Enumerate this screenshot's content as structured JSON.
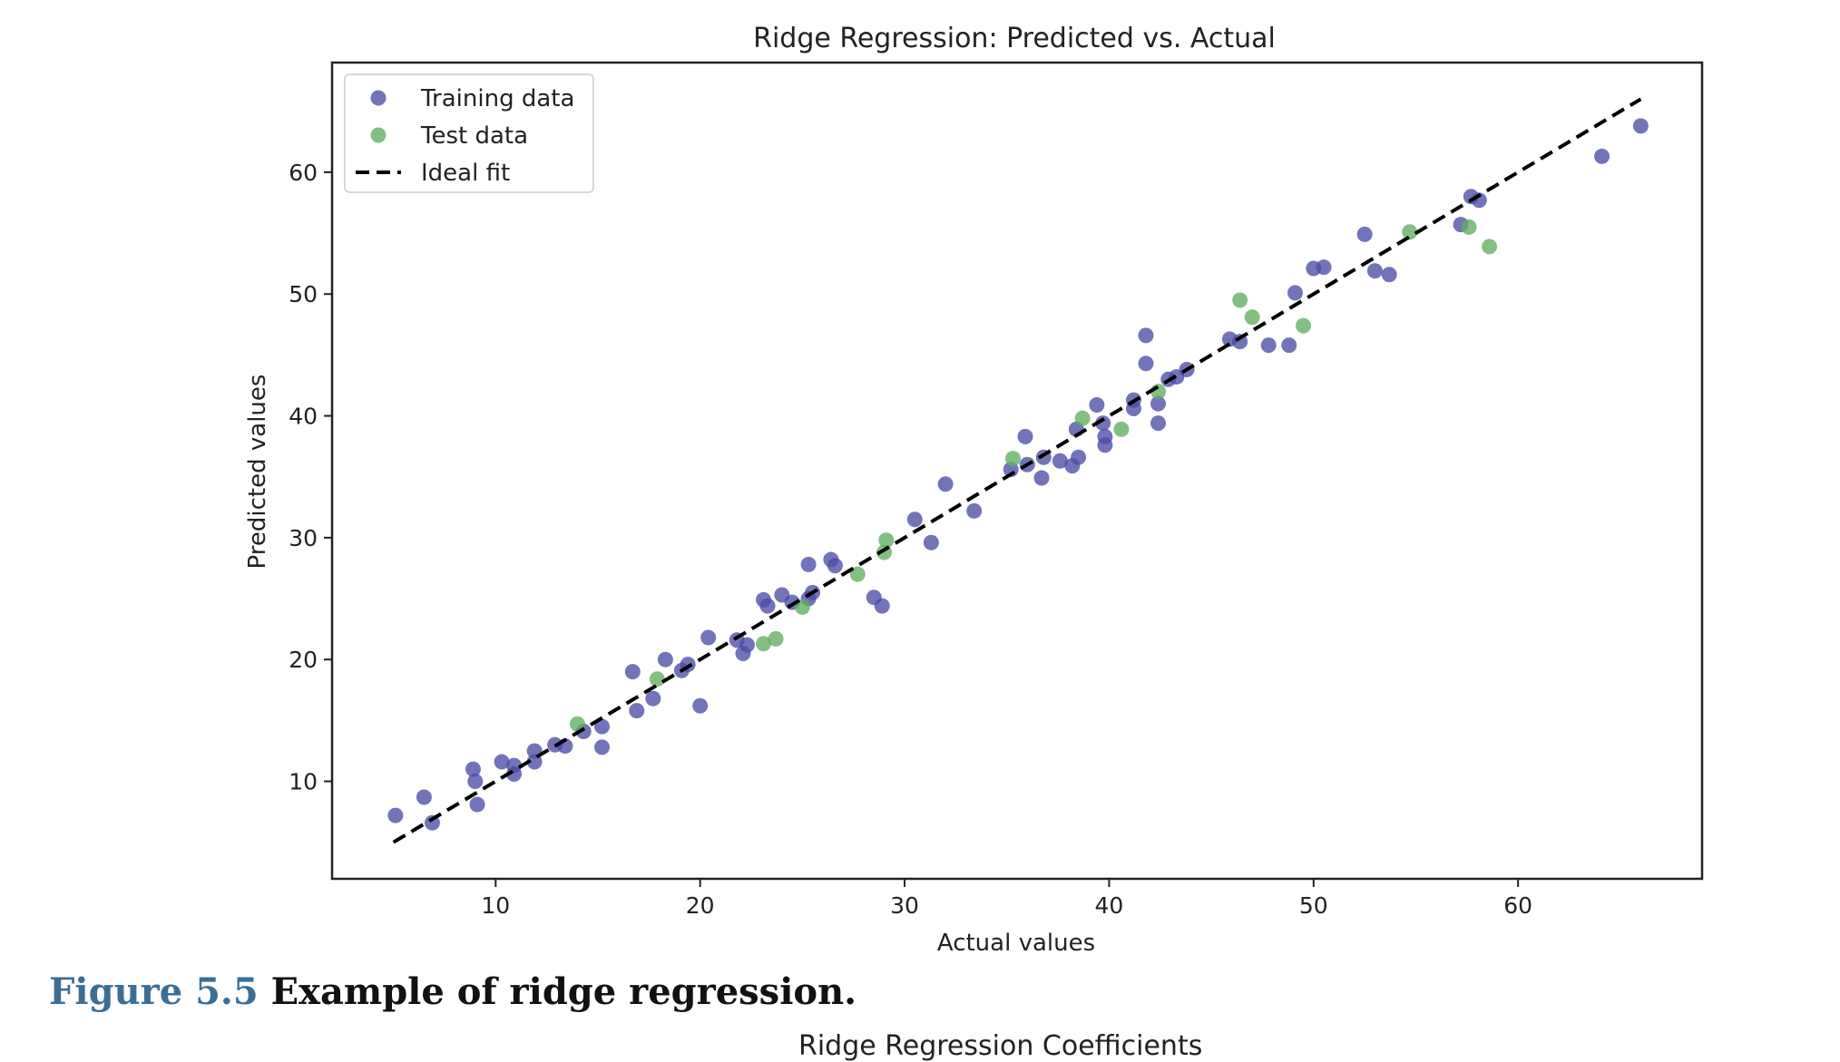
{
  "chart_data": {
    "type": "scatter",
    "title": "Ridge Regression: Predicted vs. Actual",
    "xlabel": "Actual values",
    "ylabel": "Predicted values",
    "xlim": [
      2,
      69
    ],
    "ylim": [
      2,
      69
    ],
    "xticks": [
      10,
      20,
      30,
      40,
      50,
      60
    ],
    "yticks": [
      10,
      20,
      30,
      40,
      50,
      60
    ],
    "grid": false,
    "legend_position": "top-left",
    "series": [
      {
        "name": "Training data",
        "kind": "scatter",
        "color": "#4b4ba6",
        "points": [
          [
            5.1,
            7.2
          ],
          [
            6.5,
            8.7
          ],
          [
            6.9,
            6.6
          ],
          [
            8.9,
            11.0
          ],
          [
            9.0,
            10.0
          ],
          [
            9.1,
            8.1
          ],
          [
            10.3,
            11.6
          ],
          [
            10.9,
            11.3
          ],
          [
            10.9,
            10.6
          ],
          [
            11.9,
            12.5
          ],
          [
            11.9,
            11.6
          ],
          [
            12.9,
            13.0
          ],
          [
            13.4,
            12.9
          ],
          [
            14.3,
            14.1
          ],
          [
            15.2,
            14.5
          ],
          [
            15.2,
            12.8
          ],
          [
            16.7,
            19.0
          ],
          [
            16.9,
            15.8
          ],
          [
            17.7,
            16.8
          ],
          [
            18.3,
            20.0
          ],
          [
            19.1,
            19.1
          ],
          [
            19.4,
            19.6
          ],
          [
            20.0,
            16.2
          ],
          [
            20.4,
            21.8
          ],
          [
            21.8,
            21.6
          ],
          [
            22.1,
            20.5
          ],
          [
            22.3,
            21.2
          ],
          [
            23.1,
            24.9
          ],
          [
            23.3,
            24.4
          ],
          [
            24.0,
            25.3
          ],
          [
            24.5,
            24.7
          ],
          [
            25.3,
            27.8
          ],
          [
            25.3,
            25.0
          ],
          [
            25.5,
            25.5
          ],
          [
            26.4,
            28.2
          ],
          [
            26.6,
            27.7
          ],
          [
            28.5,
            25.1
          ],
          [
            28.9,
            24.4
          ],
          [
            30.5,
            31.5
          ],
          [
            31.3,
            29.6
          ],
          [
            32.0,
            34.4
          ],
          [
            33.4,
            32.2
          ],
          [
            35.2,
            35.6
          ],
          [
            35.9,
            38.3
          ],
          [
            36.0,
            36.0
          ],
          [
            36.7,
            34.9
          ],
          [
            36.8,
            36.6
          ],
          [
            37.6,
            36.3
          ],
          [
            38.2,
            35.9
          ],
          [
            38.4,
            38.9
          ],
          [
            38.5,
            36.6
          ],
          [
            39.4,
            40.9
          ],
          [
            39.7,
            39.4
          ],
          [
            39.8,
            37.6
          ],
          [
            39.8,
            38.3
          ],
          [
            41.2,
            40.6
          ],
          [
            41.2,
            41.3
          ],
          [
            41.8,
            46.6
          ],
          [
            41.8,
            44.3
          ],
          [
            42.4,
            41.0
          ],
          [
            42.4,
            39.4
          ],
          [
            42.9,
            43.0
          ],
          [
            43.3,
            43.2
          ],
          [
            43.8,
            43.8
          ],
          [
            45.9,
            46.3
          ],
          [
            46.4,
            46.1
          ],
          [
            47.8,
            45.8
          ],
          [
            48.8,
            45.8
          ],
          [
            49.1,
            50.1
          ],
          [
            50.0,
            52.1
          ],
          [
            50.5,
            52.2
          ],
          [
            52.5,
            54.9
          ],
          [
            53.0,
            51.9
          ],
          [
            53.7,
            51.6
          ],
          [
            57.2,
            55.7
          ],
          [
            57.7,
            58.0
          ],
          [
            58.1,
            57.7
          ],
          [
            64.1,
            61.3
          ],
          [
            66.0,
            63.8
          ]
        ]
      },
      {
        "name": "Test data",
        "kind": "scatter",
        "color": "#5fae5f",
        "points": [
          [
            14.0,
            14.7
          ],
          [
            17.9,
            18.4
          ],
          [
            23.1,
            21.3
          ],
          [
            23.7,
            21.7
          ],
          [
            25.0,
            24.3
          ],
          [
            27.7,
            27.0
          ],
          [
            29.0,
            28.8
          ],
          [
            29.1,
            29.8
          ],
          [
            35.3,
            36.5
          ],
          [
            38.7,
            39.8
          ],
          [
            40.6,
            38.9
          ],
          [
            42.4,
            42.0
          ],
          [
            46.4,
            49.5
          ],
          [
            47.0,
            48.1
          ],
          [
            49.5,
            47.4
          ],
          [
            54.7,
            55.1
          ],
          [
            57.6,
            55.5
          ],
          [
            58.6,
            53.9
          ]
        ]
      },
      {
        "name": "Ideal fit",
        "kind": "line",
        "color": "#000000",
        "dash": true,
        "points": [
          [
            5,
            5
          ],
          [
            66,
            66
          ]
        ]
      }
    ]
  },
  "caption": {
    "number": "Figure 5.5",
    "text": "Example of ridge regression."
  },
  "next_figure_title_partial": "Ridge Regression Coefficients"
}
